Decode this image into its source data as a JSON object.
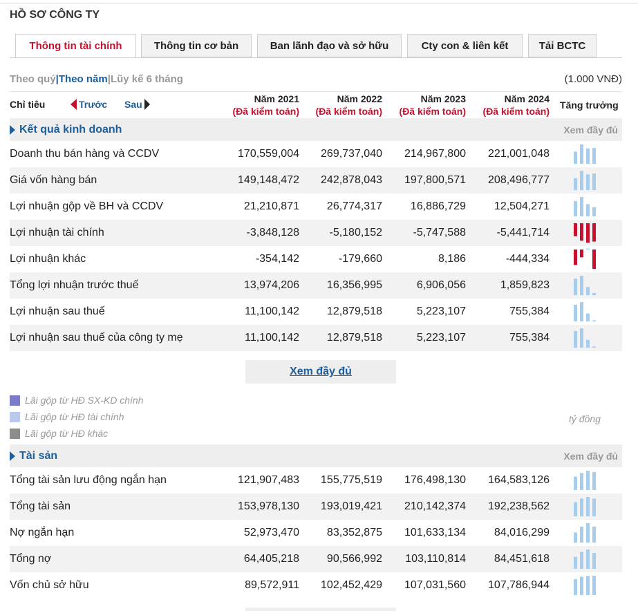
{
  "page_title": "HỒ SƠ CÔNG TY",
  "tabs": [
    {
      "label": "Thông tin tài chính",
      "active": true
    },
    {
      "label": "Thông tin cơ bản",
      "active": false
    },
    {
      "label": "Ban lãnh đạo và sở hữu",
      "active": false
    },
    {
      "label": "Cty con & liên kết",
      "active": false
    },
    {
      "label": "Tải BCTC",
      "active": false
    }
  ],
  "period": {
    "quarter": "Theo quý",
    "year": "Theo năm",
    "cumulative": "Lũy kế 6 tháng",
    "separator": "|"
  },
  "unit": "(1.000 VNĐ)",
  "header": {
    "indicator": "Chỉ tiêu",
    "prev": "Trước",
    "next": "Sau",
    "growth": "Tăng trưởng",
    "years": [
      {
        "year": "Năm 2021",
        "audit": "(Đã kiểm toán)"
      },
      {
        "year": "Năm 2022",
        "audit": "(Đã kiểm toán)"
      },
      {
        "year": "Năm 2023",
        "audit": "(Đã kiểm toán)"
      },
      {
        "year": "Năm 2024",
        "audit": "(Đã kiểm toán)"
      }
    ]
  },
  "colors": {
    "positive_bar": "#a8cdec",
    "negative_bar": "#c8102e",
    "accent": "#1d5e9c"
  },
  "sections": [
    {
      "title": "Kết quả kinh doanh",
      "more": "Xem đầy đủ",
      "rows": [
        {
          "label": "Doanh thu bán hàng và CCDV",
          "values": [
            "170,559,004",
            "269,737,040",
            "214,967,800",
            "221,001,048"
          ],
          "nums": [
            170559004,
            269737040,
            214967800,
            221001048
          ]
        },
        {
          "label": "Giá vốn hàng bán",
          "values": [
            "149,148,472",
            "242,878,043",
            "197,800,571",
            "208,496,777"
          ],
          "nums": [
            149148472,
            242878043,
            197800571,
            208496777
          ]
        },
        {
          "label": "Lợi nhuận gộp về BH và CCDV",
          "values": [
            "21,210,871",
            "26,774,317",
            "16,886,729",
            "12,504,271"
          ],
          "nums": [
            21210871,
            26774317,
            16886729,
            12504271
          ]
        },
        {
          "label": "Lợi nhuận tài chính",
          "values": [
            "-3,848,128",
            "-5,180,152",
            "-5,747,588",
            "-5,441,714"
          ],
          "nums": [
            -3848128,
            -5180152,
            -5747588,
            -5441714
          ]
        },
        {
          "label": "Lợi nhuận khác",
          "values": [
            "-354,142",
            "-179,660",
            "8,186",
            "-444,334"
          ],
          "nums": [
            -354142,
            -179660,
            8186,
            -444334
          ]
        },
        {
          "label": "Tổng lợi nhuận trước thuế",
          "values": [
            "13,974,206",
            "16,356,995",
            "6,906,056",
            "1,859,823"
          ],
          "nums": [
            13974206,
            16356995,
            6906056,
            1859823
          ]
        },
        {
          "label": "Lợi nhuận sau thuế",
          "values": [
            "11,100,142",
            "12,879,518",
            "5,223,107",
            "755,384"
          ],
          "nums": [
            11100142,
            12879518,
            5223107,
            755384
          ]
        },
        {
          "label": "Lợi nhuận sau thuế của công ty mẹ",
          "values": [
            "11,100,142",
            "12,879,518",
            "5,223,107",
            "755,384"
          ],
          "nums": [
            11100142,
            12879518,
            5223107,
            755384
          ]
        }
      ]
    },
    {
      "title": "Tài sản",
      "more": "Xem đầy đủ",
      "rows": [
        {
          "label": "Tổng tài sản lưu động ngắn hạn",
          "values": [
            "121,907,483",
            "155,775,519",
            "176,498,130",
            "164,583,126"
          ],
          "nums": [
            121907483,
            155775519,
            176498130,
            164583126
          ]
        },
        {
          "label": "Tổng tài sản",
          "values": [
            "153,978,130",
            "193,019,421",
            "210,142,374",
            "192,238,562"
          ],
          "nums": [
            153978130,
            193019421,
            210142374,
            192238562
          ]
        },
        {
          "label": "Nợ ngắn hạn",
          "values": [
            "52,973,470",
            "83,352,875",
            "101,633,134",
            "84,016,299"
          ],
          "nums": [
            52973470,
            83352875,
            101633134,
            84016299
          ]
        },
        {
          "label": "Tổng nợ",
          "values": [
            "64,405,218",
            "90,566,992",
            "103,110,814",
            "84,451,618"
          ],
          "nums": [
            64405218,
            90566992,
            103110814,
            84451618
          ]
        },
        {
          "label": "Vốn chủ sở hữu",
          "values": [
            "89,572,911",
            "102,452,429",
            "107,031,560",
            "107,786,944"
          ],
          "nums": [
            89572911,
            102452429,
            107031560,
            107786944
          ]
        }
      ]
    }
  ],
  "more_button": "Xem đầy đủ",
  "legend": [
    {
      "label": "Lãi gộp từ HĐ SX-KD chính",
      "color": "#7b7bcc"
    },
    {
      "label": "Lãi gộp từ HĐ tài chính",
      "color": "#b9c9ec"
    },
    {
      "label": "Lãi gộp từ HĐ khác",
      "color": "#8c8c8c"
    }
  ],
  "legend_unit": "tỷ đồng"
}
